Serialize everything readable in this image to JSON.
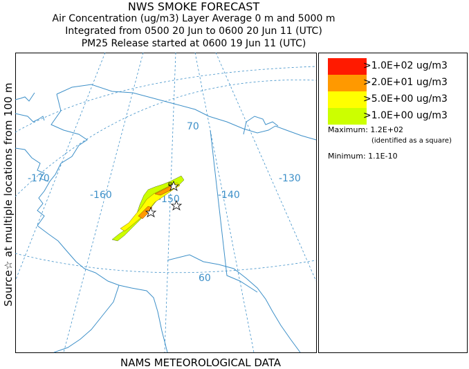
{
  "header": {
    "title": "NWS SMOKE FORECAST",
    "line2": "Air Concentration (ug/m3) Layer Average    0 m and  5000 m",
    "line3": "Integrated from 0500 20 Jun to 0600 20 Jun 11 (UTC)",
    "line4": "PM25 Release started at 0600 19 Jun 11 (UTC)"
  },
  "side_label": "Source☆  at multiple locations   from   100 m",
  "footer": "NAMS METEOROLOGICAL DATA",
  "map": {
    "longitude_labels": [
      "-170",
      "-160",
      "-150",
      "-140",
      "-130"
    ],
    "latitude_labels": [
      "70",
      "60"
    ],
    "colors": {
      "coast": "#3c8fc8",
      "grid": "#3c8fc8"
    }
  },
  "legend": {
    "items": [
      {
        "label": ">1.0E+02 ug/m3",
        "color": "#ff1a00"
      },
      {
        "label": ">2.0E+01 ug/m3",
        "color": "#ff9900"
      },
      {
        "label": ">5.0E+00 ug/m3",
        "color": "#ffff00"
      },
      {
        "label": ">1.0E+00 ug/m3",
        "color": "#ccff00"
      }
    ],
    "maximum": "Maximum: 1.2E+02",
    "maximum_note": "(identified as a square)",
    "minimum": "Minimum: 1.1E-10"
  }
}
